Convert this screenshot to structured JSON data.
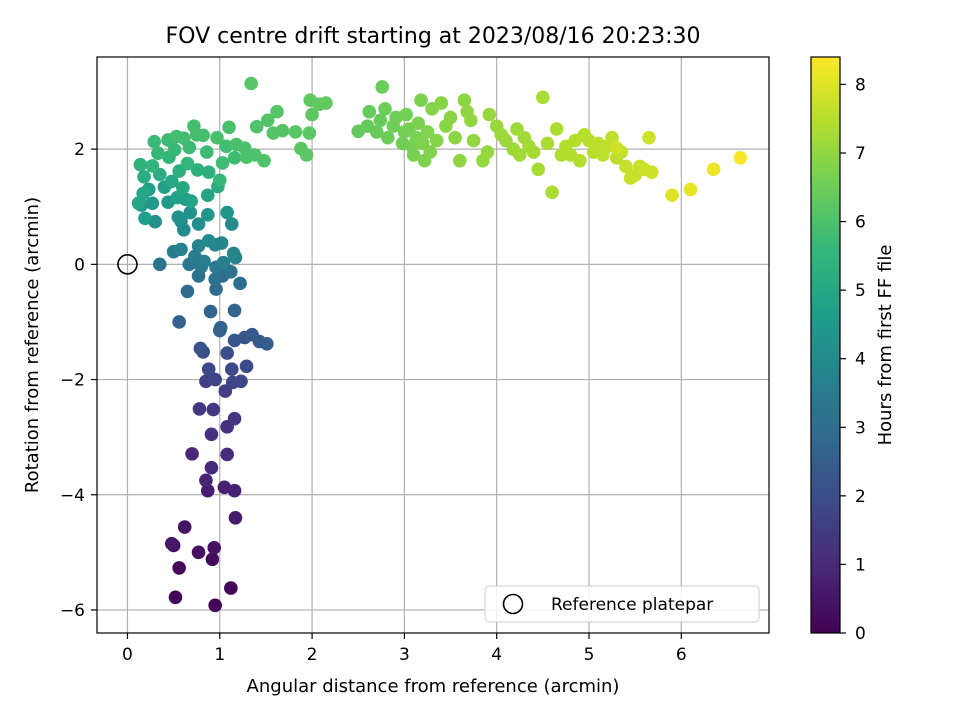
{
  "chart_data": {
    "type": "scatter",
    "title": "FOV centre drift starting at 2023/08/16 20:23:30",
    "xlabel": "Angular distance from reference (arcmin)",
    "ylabel": "Rotation from reference (arcmin)",
    "xlim": [
      -0.33,
      6.95
    ],
    "ylim": [
      -6.4,
      3.6
    ],
    "xticks": [
      0,
      1,
      2,
      3,
      4,
      5,
      6
    ],
    "yticks": [
      -6,
      -4,
      -2,
      0,
      2
    ],
    "grid": true,
    "legend": {
      "placement": "lower-right",
      "entries": [
        {
          "label": "Reference platepar",
          "marker": "open-circle"
        }
      ]
    },
    "reference_point": {
      "x": 0,
      "y": 0
    },
    "colorbar": {
      "label": "Hours from first FF file",
      "range": [
        0,
        8.4
      ],
      "ticks": [
        0,
        1,
        2,
        3,
        4,
        5,
        6,
        7,
        8
      ],
      "colormap": "viridis",
      "stops": [
        "#440154",
        "#482878",
        "#3e4989",
        "#31688e",
        "#26828e",
        "#1f9e89",
        "#35b779",
        "#6ece58",
        "#b5de2b",
        "#fde725"
      ]
    },
    "points": [
      [
        0.95,
        -5.92,
        0.05
      ],
      [
        0.52,
        -5.78,
        0.1
      ],
      [
        1.12,
        -5.62,
        0.15
      ],
      [
        0.56,
        -5.27,
        0.2
      ],
      [
        0.92,
        -5.12,
        0.25
      ],
      [
        0.77,
        -5.0,
        0.3
      ],
      [
        0.5,
        -4.88,
        0.35
      ],
      [
        0.94,
        -4.92,
        0.4
      ],
      [
        0.62,
        -4.56,
        0.45
      ],
      [
        0.48,
        -4.85,
        0.5
      ],
      [
        1.17,
        -4.4,
        0.6
      ],
      [
        0.87,
        -3.93,
        0.7
      ],
      [
        1.05,
        -3.87,
        0.75
      ],
      [
        1.16,
        -3.93,
        0.8
      ],
      [
        0.85,
        -3.75,
        0.85
      ],
      [
        0.7,
        -3.29,
        0.95
      ],
      [
        0.91,
        -3.53,
        1.0
      ],
      [
        1.08,
        -3.3,
        1.05
      ],
      [
        1.08,
        -2.82,
        1.2
      ],
      [
        0.91,
        -2.95,
        1.25
      ],
      [
        1.16,
        -2.68,
        1.35
      ],
      [
        0.78,
        -2.51,
        1.4
      ],
      [
        0.93,
        -2.52,
        1.45
      ],
      [
        1.06,
        -2.2,
        1.55
      ],
      [
        0.85,
        -2.03,
        1.65
      ],
      [
        0.95,
        -2.0,
        1.7
      ],
      [
        1.14,
        -2.05,
        1.75
      ],
      [
        1.23,
        -2.03,
        1.8
      ],
      [
        0.88,
        -1.82,
        1.85
      ],
      [
        1.13,
        -1.82,
        1.9
      ],
      [
        1.29,
        -1.77,
        1.95
      ],
      [
        0.82,
        -1.52,
        2.0
      ],
      [
        1.08,
        -1.54,
        2.05
      ],
      [
        0.79,
        -1.46,
        2.1
      ],
      [
        1.27,
        -1.27,
        2.25
      ],
      [
        1.16,
        -1.32,
        2.3
      ],
      [
        1.35,
        -1.22,
        2.35
      ],
      [
        1.43,
        -1.34,
        2.4
      ],
      [
        1.51,
        -1.38,
        2.45
      ],
      [
        1.01,
        -1.1,
        2.55
      ],
      [
        0.56,
        -1.0,
        2.6
      ],
      [
        1.0,
        -1.15,
        2.65
      ],
      [
        0.9,
        -0.82,
        2.7
      ],
      [
        1.16,
        -0.8,
        2.75
      ],
      [
        0.65,
        -0.47,
        2.9
      ],
      [
        0.96,
        -0.43,
        2.95
      ],
      [
        1.03,
        -0.2,
        3.0
      ],
      [
        1.22,
        -0.33,
        3.05
      ],
      [
        0.77,
        -0.2,
        3.1
      ],
      [
        0.95,
        -0.26,
        3.15
      ],
      [
        1.12,
        -0.13,
        3.2
      ],
      [
        0.35,
        0.0,
        3.25
      ],
      [
        0.67,
        0.0,
        3.3
      ],
      [
        0.8,
        -0.04,
        3.35
      ],
      [
        0.96,
        -0.05,
        3.4
      ],
      [
        0.5,
        0.22,
        3.45
      ],
      [
        0.73,
        0.14,
        3.5
      ],
      [
        0.83,
        0.05,
        3.55
      ],
      [
        1.04,
        0.03,
        3.6
      ],
      [
        1.17,
        0.12,
        3.65
      ],
      [
        0.58,
        0.26,
        3.7
      ],
      [
        0.77,
        0.32,
        3.75
      ],
      [
        0.95,
        0.34,
        3.8
      ],
      [
        1.02,
        0.37,
        3.85
      ],
      [
        1.15,
        0.19,
        3.9
      ],
      [
        0.61,
        0.6,
        3.95
      ],
      [
        0.88,
        0.41,
        4.0
      ],
      [
        1.13,
        0.7,
        4.05
      ],
      [
        0.58,
        0.75,
        4.1
      ],
      [
        0.77,
        0.7,
        4.15
      ],
      [
        0.3,
        0.74,
        4.2
      ],
      [
        0.55,
        0.82,
        4.25
      ],
      [
        0.68,
        0.9,
        4.3
      ],
      [
        0.87,
        0.86,
        4.35
      ],
      [
        1.08,
        0.9,
        4.4
      ],
      [
        0.15,
        1.03,
        4.45
      ],
      [
        0.27,
        1.06,
        4.5
      ],
      [
        0.44,
        1.08,
        4.55
      ],
      [
        0.63,
        1.13,
        4.6
      ],
      [
        0.19,
        0.8,
        4.65
      ],
      [
        0.23,
        1.3,
        4.7
      ],
      [
        0.4,
        1.34,
        4.75
      ],
      [
        0.54,
        1.16,
        4.8
      ],
      [
        0.69,
        1.1,
        4.85
      ],
      [
        0.87,
        1.2,
        4.9
      ],
      [
        0.12,
        1.06,
        4.92
      ],
      [
        0.17,
        1.23,
        4.95
      ],
      [
        0.48,
        1.44,
        5.0
      ],
      [
        0.6,
        1.33,
        5.05
      ],
      [
        0.98,
        1.35,
        5.1
      ],
      [
        0.18,
        1.52,
        5.15
      ],
      [
        0.35,
        1.56,
        5.2
      ],
      [
        0.56,
        1.62,
        5.25
      ],
      [
        0.76,
        1.64,
        5.3
      ],
      [
        0.88,
        1.6,
        5.35
      ],
      [
        0.14,
        1.73,
        5.4
      ],
      [
        0.27,
        1.71,
        5.45
      ],
      [
        0.45,
        1.86,
        5.5
      ],
      [
        0.65,
        1.75,
        5.55
      ],
      [
        1.0,
        1.46,
        5.6
      ],
      [
        0.33,
        1.93,
        5.62
      ],
      [
        0.51,
        1.99,
        5.65
      ],
      [
        0.29,
        2.13,
        5.68
      ],
      [
        0.44,
        2.16,
        5.7
      ],
      [
        0.67,
        2.03,
        5.72
      ],
      [
        0.86,
        1.95,
        5.74
      ],
      [
        1.03,
        1.76,
        5.76
      ],
      [
        1.16,
        1.85,
        5.78
      ],
      [
        1.07,
        2.05,
        5.8
      ],
      [
        0.53,
        2.22,
        5.82
      ],
      [
        0.61,
        2.19,
        5.84
      ],
      [
        0.75,
        2.25,
        5.86
      ],
      [
        0.72,
        2.4,
        5.88
      ],
      [
        0.82,
        2.24,
        5.9
      ],
      [
        0.97,
        2.2,
        5.92
      ],
      [
        1.1,
        2.38,
        5.94
      ],
      [
        1.18,
        2.08,
        5.96
      ],
      [
        1.27,
        2.02,
        5.98
      ],
      [
        1.29,
        1.86,
        6.0
      ],
      [
        1.38,
        1.9,
        6.02
      ],
      [
        1.48,
        1.8,
        6.04
      ],
      [
        1.4,
        2.39,
        6.06
      ],
      [
        1.52,
        2.5,
        6.08
      ],
      [
        1.58,
        2.28,
        6.1
      ],
      [
        1.68,
        2.32,
        6.12
      ],
      [
        1.62,
        2.65,
        6.14
      ],
      [
        1.34,
        3.14,
        6.16
      ],
      [
        1.82,
        2.3,
        6.18
      ],
      [
        1.88,
        2.01,
        6.2
      ],
      [
        1.94,
        1.9,
        6.22
      ],
      [
        1.97,
        2.28,
        6.24
      ],
      [
        2.0,
        2.6,
        6.26
      ],
      [
        1.98,
        2.85,
        6.28
      ],
      [
        2.08,
        2.78,
        6.3
      ],
      [
        2.15,
        2.8,
        6.32
      ],
      [
        2.5,
        2.31,
        6.35
      ],
      [
        2.6,
        2.4,
        6.38
      ],
      [
        2.62,
        2.65,
        6.4
      ],
      [
        2.7,
        2.3,
        6.42
      ],
      [
        2.74,
        2.5,
        6.44
      ],
      [
        2.76,
        3.08,
        6.46
      ],
      [
        2.79,
        2.7,
        6.48
      ],
      [
        2.82,
        2.2,
        6.5
      ],
      [
        2.88,
        2.4,
        6.52
      ],
      [
        2.91,
        2.55,
        6.54
      ],
      [
        2.98,
        2.1,
        6.56
      ],
      [
        3.0,
        2.3,
        6.58
      ],
      [
        3.02,
        2.6,
        6.6
      ],
      [
        3.05,
        2.35,
        6.62
      ],
      [
        3.08,
        2.05,
        6.64
      ],
      [
        3.1,
        1.9,
        6.66
      ],
      [
        3.13,
        2.2,
        6.68
      ],
      [
        3.15,
        2.45,
        6.7
      ],
      [
        3.18,
        2.85,
        6.72
      ],
      [
        3.2,
        2.1,
        6.74
      ],
      [
        3.22,
        1.8,
        6.76
      ],
      [
        3.25,
        2.3,
        6.78
      ],
      [
        3.28,
        1.95,
        6.8
      ],
      [
        3.3,
        2.7,
        6.82
      ],
      [
        3.35,
        2.15,
        6.84
      ],
      [
        3.4,
        2.8,
        6.86
      ],
      [
        3.45,
        2.4,
        6.88
      ],
      [
        3.5,
        2.55,
        6.9
      ],
      [
        3.55,
        2.2,
        6.92
      ],
      [
        3.6,
        1.8,
        6.94
      ],
      [
        3.65,
        2.85,
        6.96
      ],
      [
        3.68,
        2.65,
        6.98
      ],
      [
        3.72,
        2.5,
        7.0
      ],
      [
        3.75,
        2.15,
        7.02
      ],
      [
        3.85,
        1.8,
        7.04
      ],
      [
        3.9,
        1.95,
        7.06
      ],
      [
        3.92,
        2.6,
        7.08
      ],
      [
        4.0,
        2.4,
        7.1
      ],
      [
        4.05,
        2.25,
        7.12
      ],
      [
        4.1,
        2.15,
        7.14
      ],
      [
        4.18,
        2.0,
        7.16
      ],
      [
        4.22,
        2.35,
        7.18
      ],
      [
        4.25,
        1.9,
        7.2
      ],
      [
        4.3,
        2.2,
        7.22
      ],
      [
        4.35,
        2.05,
        7.24
      ],
      [
        4.4,
        1.95,
        7.26
      ],
      [
        4.45,
        1.65,
        7.28
      ],
      [
        4.5,
        2.9,
        7.3
      ],
      [
        4.55,
        2.1,
        7.32
      ],
      [
        4.6,
        1.25,
        7.34
      ],
      [
        4.65,
        2.35,
        7.36
      ],
      [
        4.7,
        1.9,
        7.38
      ],
      [
        4.75,
        2.05,
        7.4
      ],
      [
        4.8,
        1.9,
        7.42
      ],
      [
        4.85,
        2.15,
        7.44
      ],
      [
        4.9,
        1.8,
        7.46
      ],
      [
        4.95,
        2.25,
        7.48
      ],
      [
        5.0,
        2.15,
        7.5
      ],
      [
        5.05,
        1.95,
        7.52
      ],
      [
        5.1,
        2.1,
        7.54
      ],
      [
        5.15,
        1.9,
        7.56
      ],
      [
        5.2,
        2.05,
        7.58
      ],
      [
        5.25,
        2.2,
        7.6
      ],
      [
        5.3,
        1.85,
        7.62
      ],
      [
        5.35,
        1.95,
        7.64
      ],
      [
        5.4,
        1.7,
        7.66
      ],
      [
        5.45,
        1.5,
        7.68
      ],
      [
        5.5,
        1.55,
        7.7
      ],
      [
        5.55,
        1.7,
        7.72
      ],
      [
        5.6,
        1.65,
        7.74
      ],
      [
        5.65,
        2.2,
        7.76
      ],
      [
        5.68,
        1.6,
        7.78
      ],
      [
        5.3,
        2.02,
        7.8
      ],
      [
        5.9,
        1.2,
        8.0
      ],
      [
        6.1,
        1.3,
        8.1
      ],
      [
        6.35,
        1.65,
        8.2
      ],
      [
        6.64,
        1.85,
        8.35
      ]
    ]
  }
}
